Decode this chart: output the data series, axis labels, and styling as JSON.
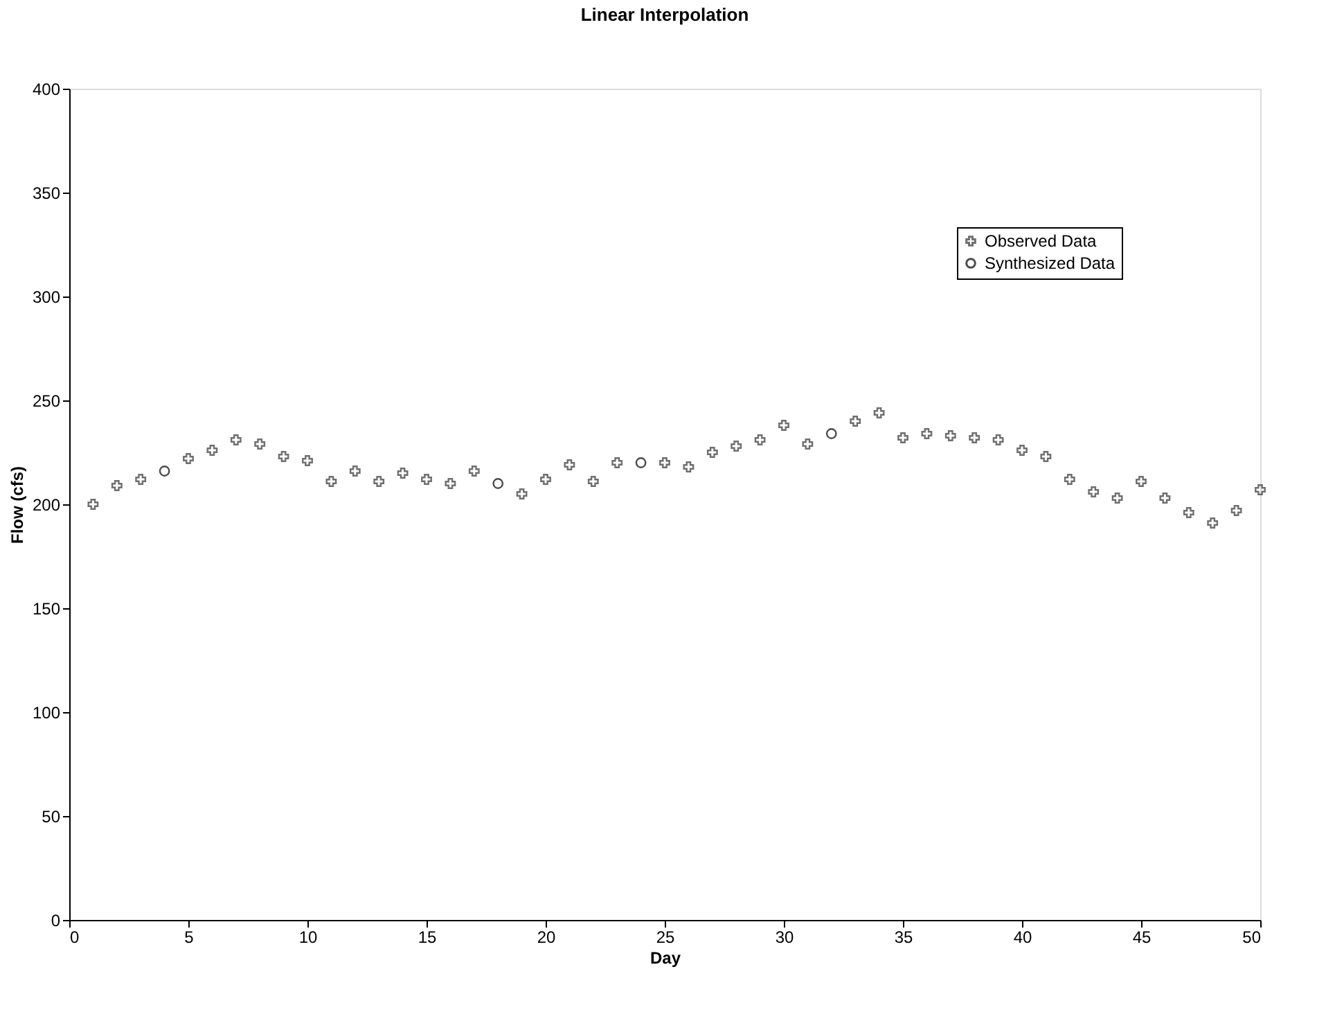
{
  "chart_data": {
    "type": "scatter",
    "title": "Linear Interpolation",
    "xlabel": "Day",
    "ylabel": "Flow (cfs)",
    "xlim": [
      0,
      50
    ],
    "xticks": [
      0,
      5,
      10,
      15,
      20,
      25,
      30,
      35,
      40,
      45,
      50
    ],
    "ylim": [
      0,
      400
    ],
    "yticks": [
      0,
      50,
      100,
      150,
      200,
      250,
      300,
      350,
      400
    ],
    "grid": false,
    "legend": "top right",
    "series": [
      {
        "name": "Observed Data",
        "color": "#333333",
        "marker": "cross",
        "x": [
          1,
          2,
          3,
          5,
          6,
          7,
          8,
          9,
          10,
          11,
          12,
          13,
          14,
          15,
          16,
          17,
          19,
          20,
          21,
          22,
          23,
          25,
          26,
          27,
          28,
          29,
          30,
          31,
          33,
          34,
          35,
          36,
          37,
          38,
          39,
          40,
          41,
          42,
          43,
          44,
          45,
          46,
          47,
          48,
          49,
          50
        ],
        "values": [
          200,
          209,
          212,
          222,
          226,
          231,
          229,
          223,
          221,
          211,
          216,
          211,
          215,
          212,
          210,
          216,
          205,
          212,
          219,
          211,
          220,
          220,
          218,
          225,
          228,
          231,
          238,
          229,
          240,
          244,
          232,
          234,
          233,
          232,
          231,
          226,
          223,
          212,
          206,
          203,
          211,
          203,
          196,
          191,
          197,
          207
        ]
      },
      {
        "name": "Synthesized Data",
        "color": "#000000",
        "marker": "circle",
        "x": [
          4,
          18,
          24,
          32
        ],
        "values": [
          216,
          210,
          220,
          234
        ]
      }
    ]
  }
}
